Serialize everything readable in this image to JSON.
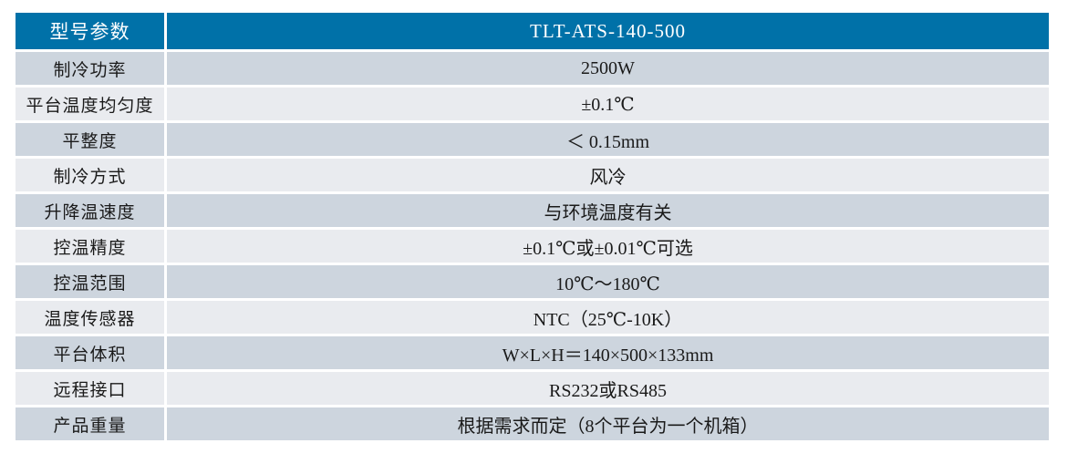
{
  "table": {
    "header": {
      "param_label": "型号参数",
      "model": "TLT-ATS-140-500"
    },
    "rows": [
      {
        "label": "制冷功率",
        "value": "2500W"
      },
      {
        "label": "平台温度均匀度",
        "value": "±0.1℃"
      },
      {
        "label": "平整度",
        "value": "＜ 0.15mm"
      },
      {
        "label": "制冷方式",
        "value": "风冷"
      },
      {
        "label": "升降温速度",
        "value": "与环境温度有关"
      },
      {
        "label": "控温精度",
        "value": "±0.1℃或±0.01℃可选"
      },
      {
        "label": "控温范围",
        "value": "10℃～180℃"
      },
      {
        "label": "温度传感器",
        "value": "NTC（25℃-10K）"
      },
      {
        "label": "平台体积",
        "value": "W×L×H＝140×500×133mm"
      },
      {
        "label": "远程接口",
        "value": "RS232或RS485"
      },
      {
        "label": "产品重量",
        "value": "根据需求而定（8个平台为一个机箱）"
      }
    ],
    "colors": {
      "header_bg": "#0071A8",
      "header_text": "#FFFFFF",
      "row_dark_bg": "#CDD5DE",
      "row_light_bg": "#E9EBEF",
      "body_text": "#1A1A1A",
      "page_bg": "#FFFFFF"
    }
  }
}
